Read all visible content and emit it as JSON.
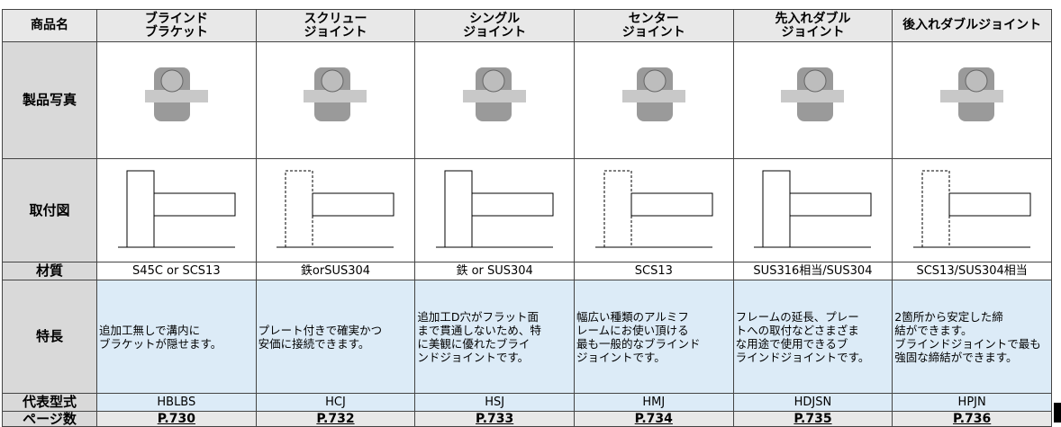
{
  "row_labels": [
    "商品名",
    "製品写真",
    "取付図",
    "材質",
    "特長",
    "代表型式",
    "ページ数"
  ],
  "products": [
    {
      "name": [
        "ブラインド",
        "ブラケット"
      ],
      "material": "S45C or SCS13",
      "features": [
        "追加工無しで溝内に",
        "ブラケットが隠せます。"
      ],
      "model": "HBLBS",
      "page": "P.730"
    },
    {
      "name": [
        "スクリュー",
        "ジョイント"
      ],
      "material": "鉄orSUS304",
      "features": [
        "プレート付きで確実かつ",
        "安価に接続できます。"
      ],
      "model": "HCJ",
      "page": "P.732"
    },
    {
      "name": [
        "シングル",
        "ジョイント"
      ],
      "material": "鉄 or SUS304",
      "features": [
        "追加工D穴がフラット面",
        "まで貫通しないため、特",
        "に美観に優れたブライ",
        "ンドジョイントです。"
      ],
      "model": "HSJ",
      "page": "P.733"
    },
    {
      "name": [
        "センター",
        "ジョイント"
      ],
      "material": "SCS13",
      "features": [
        "幅広い種類のアルミフ",
        "レームにお使い頂ける",
        "最も一般的なブラインド",
        "ジョイントです。"
      ],
      "model": "HMJ",
      "page": "P.734"
    },
    {
      "name": [
        "先入れダブル",
        "ジョイント"
      ],
      "material": "SUS316相当/SUS304",
      "features": [
        "フレームの延長、プレー",
        "トへの取付などさまざま",
        "な用途で使用できるブ",
        "ラインドジョイントです。"
      ],
      "model": "HDJSN",
      "page": "P.735"
    },
    {
      "name": [
        "後入れダブルジョイント"
      ],
      "material": "SCS13/SUS304相当",
      "features": [
        "2箇所から安定した締",
        "結ができます。",
        "ブラインドジョイントで最も",
        "強固な締結ができます。"
      ],
      "model": "HPJN",
      "page": "P.736"
    }
  ]
}
